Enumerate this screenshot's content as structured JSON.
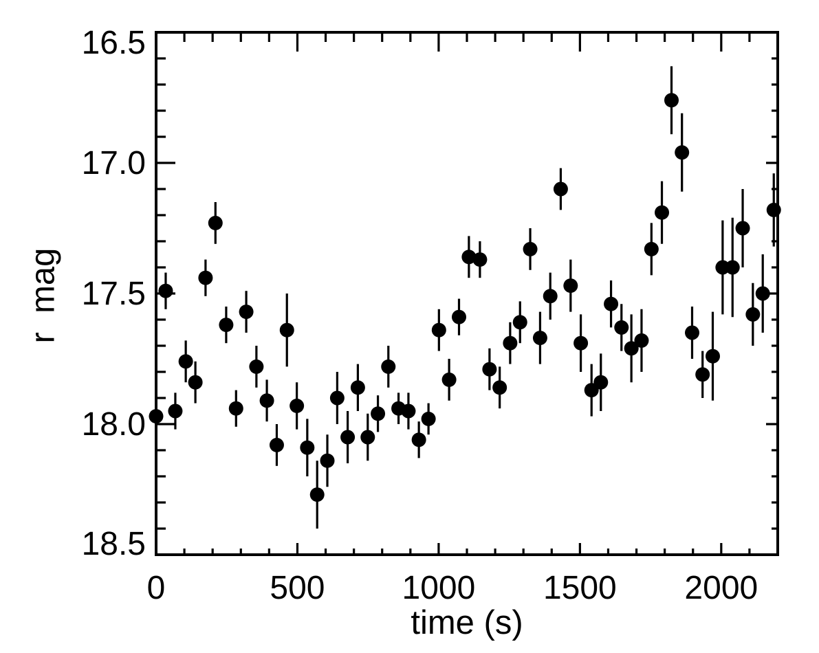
{
  "figure": {
    "background": "#ffffff",
    "axis_color": "#000000"
  },
  "chart_data": {
    "type": "scatter",
    "title": "",
    "xlabel": "time (s)",
    "ylabel": "r  mag",
    "xlim": [
      0,
      2200
    ],
    "ylim": [
      16.5,
      18.5
    ],
    "y_inverted": true,
    "grid": false,
    "legend": false,
    "marker": "filled-circle",
    "marker_color": "#000000",
    "error_bars": "vertical",
    "x_major_ticks": [
      0,
      500,
      1000,
      1500,
      2000
    ],
    "x_tick_labels": [
      "0",
      "500",
      "1000",
      "1500",
      "2000"
    ],
    "x_minor_step": 100,
    "y_major_ticks": [
      16.5,
      17.0,
      17.5,
      18.0,
      18.5
    ],
    "y_tick_labels": [
      "16.5",
      "17.0",
      "17.5",
      "18.0",
      "18.5"
    ],
    "y_minor_step": 0.1,
    "points_format": [
      "time_s",
      "r_mag",
      "mag_error"
    ],
    "points": [
      [
        0,
        17.97,
        0.06
      ],
      [
        34,
        17.49,
        0.07
      ],
      [
        68,
        17.95,
        0.07
      ],
      [
        105,
        17.76,
        0.08
      ],
      [
        139,
        17.84,
        0.08
      ],
      [
        175,
        17.44,
        0.07
      ],
      [
        210,
        17.23,
        0.08
      ],
      [
        248,
        17.62,
        0.07
      ],
      [
        283,
        17.94,
        0.07
      ],
      [
        319,
        17.57,
        0.08
      ],
      [
        355,
        17.78,
        0.08
      ],
      [
        392,
        17.91,
        0.08
      ],
      [
        427,
        18.08,
        0.08
      ],
      [
        463,
        17.64,
        0.14
      ],
      [
        498,
        17.93,
        0.09
      ],
      [
        535,
        18.09,
        0.11
      ],
      [
        570,
        18.27,
        0.13
      ],
      [
        606,
        18.14,
        0.1
      ],
      [
        641,
        17.9,
        0.1
      ],
      [
        678,
        18.05,
        0.1
      ],
      [
        714,
        17.86,
        0.09
      ],
      [
        749,
        18.05,
        0.09
      ],
      [
        785,
        17.96,
        0.07
      ],
      [
        822,
        17.78,
        0.08
      ],
      [
        858,
        17.94,
        0.06
      ],
      [
        893,
        17.95,
        0.07
      ],
      [
        930,
        18.06,
        0.07
      ],
      [
        964,
        17.98,
        0.06
      ],
      [
        1001,
        17.64,
        0.08
      ],
      [
        1037,
        17.83,
        0.08
      ],
      [
        1072,
        17.59,
        0.07
      ],
      [
        1107,
        17.36,
        0.08
      ],
      [
        1146,
        17.37,
        0.07
      ],
      [
        1180,
        17.79,
        0.08
      ],
      [
        1216,
        17.86,
        0.08
      ],
      [
        1253,
        17.69,
        0.08
      ],
      [
        1288,
        17.61,
        0.08
      ],
      [
        1324,
        17.33,
        0.08
      ],
      [
        1359,
        17.67,
        0.1
      ],
      [
        1395,
        17.51,
        0.09
      ],
      [
        1432,
        17.1,
        0.08
      ],
      [
        1467,
        17.47,
        0.1
      ],
      [
        1503,
        17.69,
        0.11
      ],
      [
        1541,
        17.87,
        0.1
      ],
      [
        1574,
        17.84,
        0.11
      ],
      [
        1610,
        17.54,
        0.09
      ],
      [
        1647,
        17.63,
        0.09
      ],
      [
        1682,
        17.71,
        0.13
      ],
      [
        1718,
        17.68,
        0.12
      ],
      [
        1753,
        17.33,
        0.1
      ],
      [
        1790,
        17.19,
        0.12
      ],
      [
        1824,
        16.76,
        0.13
      ],
      [
        1861,
        16.96,
        0.15
      ],
      [
        1897,
        17.65,
        0.1
      ],
      [
        1934,
        17.81,
        0.09
      ],
      [
        1970,
        17.74,
        0.17
      ],
      [
        2005,
        17.4,
        0.18
      ],
      [
        2040,
        17.4,
        0.19
      ],
      [
        2076,
        17.25,
        0.15
      ],
      [
        2112,
        17.58,
        0.12
      ],
      [
        2147,
        17.5,
        0.15
      ],
      [
        2186,
        17.18,
        0.14
      ]
    ]
  }
}
